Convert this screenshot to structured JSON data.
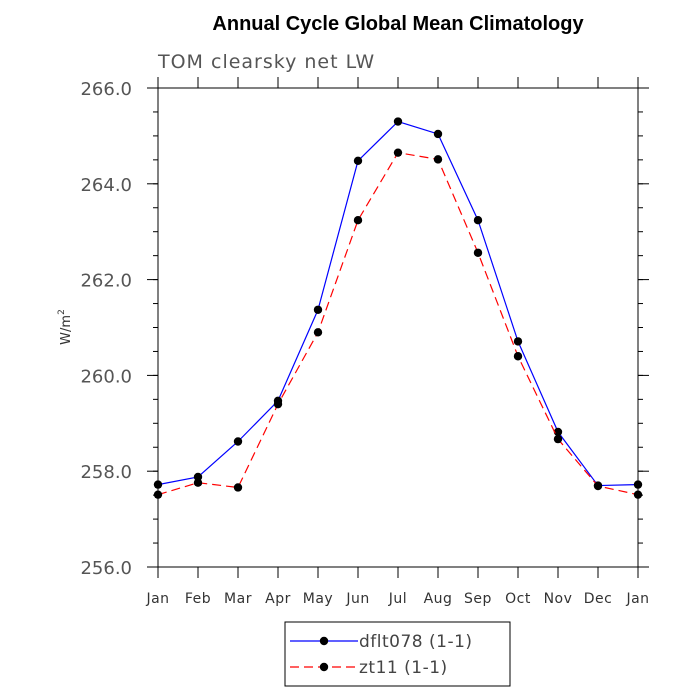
{
  "chart_data": {
    "type": "line",
    "title": "Annual Cycle Global Mean Climatology",
    "subtitle": "TOM clearsky net LW",
    "xlabel": "",
    "ylabel": "W/m",
    "ylabel_superscript": "2",
    "ylim": [
      256.0,
      266.0
    ],
    "yticks": [
      256.0,
      258.0,
      260.0,
      262.0,
      264.0,
      266.0
    ],
    "ytick_labels": [
      "256.0",
      "258.0",
      "260.0",
      "262.0",
      "264.0",
      "266.0"
    ],
    "yminor_step": 0.5,
    "categories": [
      "Jan",
      "Feb",
      "Mar",
      "Apr",
      "May",
      "Jun",
      "Jul",
      "Aug",
      "Sep",
      "Oct",
      "Nov",
      "Dec",
      "Jan"
    ],
    "legend_position": "bottom-center",
    "series": [
      {
        "name": "dflt078 (1-1)",
        "color": "#0000ff",
        "line_style": "solid",
        "marker": "filled-circle",
        "values": [
          257.72,
          257.88,
          258.62,
          259.47,
          261.37,
          264.48,
          265.3,
          265.04,
          263.24,
          260.71,
          258.82,
          257.7,
          257.72
        ]
      },
      {
        "name": "zt11 (1-1)",
        "color": "#ff0000",
        "line_style": "dashed",
        "marker": "filled-circle",
        "values": [
          257.51,
          257.76,
          257.66,
          259.4,
          260.9,
          263.24,
          264.65,
          264.51,
          262.56,
          260.4,
          258.67,
          257.69,
          257.51
        ]
      }
    ]
  }
}
